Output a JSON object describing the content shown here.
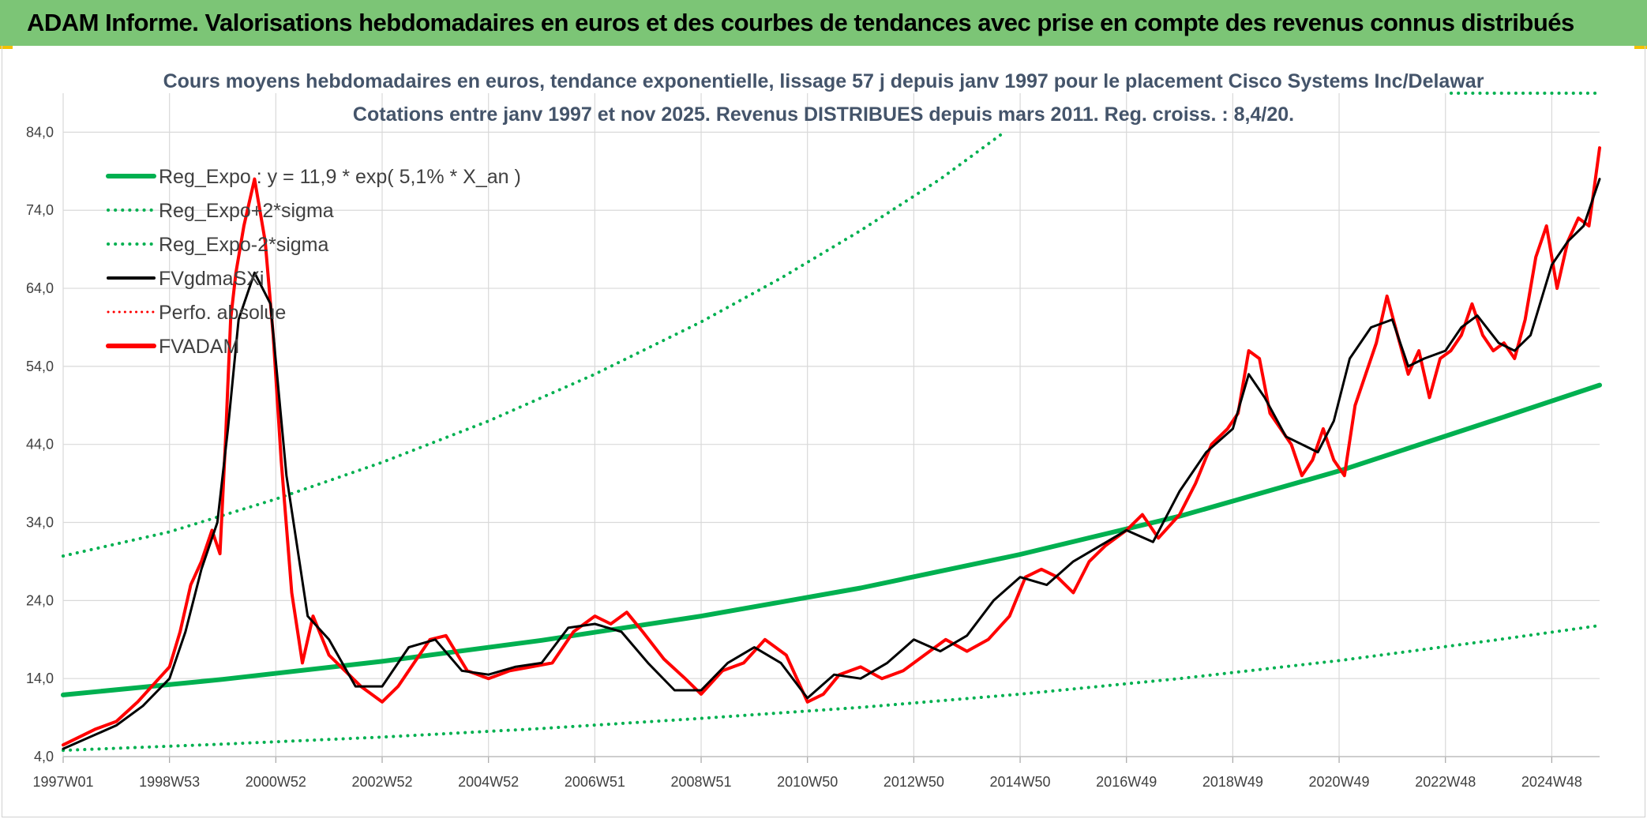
{
  "header": {
    "banner_title": "ADAM Informe. Valorisations hebdomadaires en euros et des courbes de tendances avec prise en compte des revenus connus distribués"
  },
  "colors": {
    "banner_bg": "#7cc576",
    "reg_green": "#00b050",
    "fv_black": "#000000",
    "adam_red": "#ff0000",
    "title_color": "#44546a",
    "grid": "#d9d9d9"
  },
  "chart_data": {
    "type": "line",
    "title": "Cours moyens hebdomadaires en euros, tendance exponentielle, lissage 57 j depuis janv 1997 pour le placement Cisco Systems Inc/Delawar",
    "subtitle": "Cotations entre janv 1997 et nov 2025. Revenus DISTRIBUES depuis mars 2011. Reg. croiss. : 8,4/20.",
    "xlabel": "",
    "ylabel": "",
    "x_range": [
      1997.0,
      2025.9
    ],
    "ylim": [
      4,
      89
    ],
    "y_ticks": [
      "4,0",
      "14,0",
      "24,0",
      "34,0",
      "44,0",
      "54,0",
      "64,0",
      "74,0",
      "84,0"
    ],
    "y_tick_values": [
      4,
      14,
      24,
      34,
      44,
      54,
      64,
      74,
      84
    ],
    "x_tick_labels": [
      "1997W01",
      "1998W53",
      "2000W52",
      "2002W52",
      "2004W52",
      "2006W51",
      "2008W51",
      "2010W50",
      "2012W50",
      "2014W50",
      "2016W49",
      "2018W49",
      "2020W49",
      "2022W48",
      "2024W48"
    ],
    "x_tick_values": [
      1997.0,
      1999.0,
      2001.0,
      2003.0,
      2005.0,
      2007.0,
      2009.0,
      2011.0,
      2013.0,
      2015.0,
      2017.0,
      2019.0,
      2021.0,
      2023.0,
      2025.0
    ],
    "grid": true,
    "legend_position": "top-left",
    "legend": [
      {
        "label": "Reg_Expo : y = 11,9 * exp( 5,1% *  X_an )",
        "style": "solid",
        "color": "#00b050"
      },
      {
        "label": "Reg_Expo+2*sigma",
        "style": "dotted",
        "color": "#00b050"
      },
      {
        "label": "Reg_Expo-2*sigma",
        "style": "dotted",
        "color": "#00b050"
      },
      {
        "label": "FVgdmaSXi",
        "style": "solid",
        "color": "#000000"
      },
      {
        "label": "Perfo. absolue",
        "style": "dotted",
        "color": "#ff0000"
      },
      {
        "label": "FVADAM",
        "style": "solid",
        "color": "#ff0000"
      }
    ],
    "series": [
      {
        "name": "Reg_Expo : y = 11,9 * exp( 5,1% *  X_an )",
        "x": [
          1997.0,
          2000.0,
          2003.0,
          2006.0,
          2009.0,
          2012.0,
          2015.0,
          2018.0,
          2021.0,
          2024.0,
          2025.9
        ],
        "values": [
          11.9,
          13.9,
          16.2,
          18.9,
          22.0,
          25.6,
          29.9,
          34.8,
          40.6,
          47.3,
          51.6
        ]
      },
      {
        "name": "Reg_Expo+2*sigma",
        "x": [
          1997.0,
          1999.0,
          2001.0,
          2003.0,
          2005.0,
          2007.0,
          2009.0,
          2010.5,
          2012.0,
          2013.5,
          2014.7
        ],
        "values": [
          29.7,
          32.8,
          37.0,
          41.7,
          47.0,
          53.0,
          59.7,
          65.3,
          71.4,
          78.0,
          84.0
        ]
      },
      {
        "name": "Reg_Expo-2*sigma",
        "x": [
          1997.0,
          2000.0,
          2003.0,
          2006.0,
          2009.0,
          2012.0,
          2015.0,
          2018.0,
          2021.0,
          2024.0,
          2025.9
        ],
        "values": [
          4.8,
          5.6,
          6.5,
          7.6,
          8.9,
          10.3,
          12.0,
          14.0,
          16.3,
          19.0,
          20.8
        ]
      },
      {
        "name": "FVgdmaSXi",
        "x": [
          1997.0,
          1997.5,
          1998.0,
          1998.5,
          1999.0,
          1999.3,
          1999.6,
          1999.9,
          2000.1,
          2000.3,
          2000.6,
          2000.9,
          2001.2,
          2001.6,
          2002.0,
          2002.5,
          2003.0,
          2003.5,
          2004.0,
          2004.5,
          2005.0,
          2005.5,
          2006.0,
          2006.5,
          2007.0,
          2007.5,
          2008.0,
          2008.5,
          2009.0,
          2009.5,
          2010.0,
          2010.5,
          2011.0,
          2011.5,
          2012.0,
          2012.5,
          2013.0,
          2013.5,
          2014.0,
          2014.5,
          2015.0,
          2015.5,
          2016.0,
          2016.5,
          2017.0,
          2017.5,
          2018.0,
          2018.5,
          2019.0,
          2019.3,
          2019.6,
          2020.0,
          2020.3,
          2020.6,
          2020.9,
          2021.2,
          2021.6,
          2022.0,
          2022.3,
          2022.6,
          2023.0,
          2023.3,
          2023.6,
          2024.0,
          2024.3,
          2024.6,
          2025.0,
          2025.3,
          2025.6,
          2025.9
        ],
        "values": [
          5.0,
          6.5,
          8.0,
          10.5,
          14.0,
          20.0,
          28.0,
          34.0,
          46.0,
          60.0,
          66.0,
          62.0,
          40.0,
          22.0,
          19.0,
          13.0,
          13.0,
          18.0,
          19.0,
          15.0,
          14.5,
          15.5,
          16.0,
          20.5,
          21.0,
          20.0,
          16.0,
          12.5,
          12.5,
          16.0,
          18.0,
          16.0,
          11.5,
          14.5,
          14.0,
          16.0,
          19.0,
          17.5,
          19.5,
          24.0,
          27.0,
          26.0,
          29.0,
          31.0,
          33.0,
          31.5,
          38.0,
          43.0,
          46.0,
          53.0,
          50.0,
          45.0,
          44.0,
          43.0,
          47.0,
          55.0,
          59.0,
          60.0,
          54.0,
          55.0,
          56.0,
          59.0,
          60.5,
          57.0,
          56.0,
          58.0,
          67.0,
          70.0,
          72.0,
          78.0
        ]
      },
      {
        "name": "FVADAM",
        "x": [
          1997.0,
          1997.3,
          1997.6,
          1998.0,
          1998.4,
          1998.8,
          1999.0,
          1999.2,
          1999.4,
          1999.6,
          1999.8,
          1999.95,
          2000.05,
          2000.15,
          2000.25,
          2000.4,
          2000.6,
          2000.8,
          2000.95,
          2001.1,
          2001.3,
          2001.5,
          2001.7,
          2002.0,
          2002.3,
          2002.6,
          2003.0,
          2003.3,
          2003.6,
          2003.9,
          2004.2,
          2004.6,
          2005.0,
          2005.4,
          2005.8,
          2006.2,
          2006.6,
          2007.0,
          2007.3,
          2007.6,
          2007.9,
          2008.3,
          2008.7,
          2009.0,
          2009.4,
          2009.8,
          2010.2,
          2010.6,
          2011.0,
          2011.3,
          2011.6,
          2012.0,
          2012.4,
          2012.8,
          2013.2,
          2013.6,
          2014.0,
          2014.4,
          2014.8,
          2015.1,
          2015.4,
          2015.7,
          2016.0,
          2016.3,
          2016.6,
          2017.0,
          2017.3,
          2017.6,
          2018.0,
          2018.3,
          2018.6,
          2018.9,
          2019.1,
          2019.3,
          2019.5,
          2019.7,
          2019.9,
          2020.1,
          2020.3,
          2020.5,
          2020.7,
          2020.9,
          2021.1,
          2021.3,
          2021.5,
          2021.7,
          2021.9,
          2022.1,
          2022.3,
          2022.5,
          2022.7,
          2022.9,
          2023.1,
          2023.3,
          2023.5,
          2023.7,
          2023.9,
          2024.1,
          2024.3,
          2024.5,
          2024.7,
          2024.9,
          2025.1,
          2025.3,
          2025.5,
          2025.7,
          2025.8,
          2025.9
        ],
        "values": [
          5.5,
          6.5,
          7.5,
          8.5,
          11.0,
          14.0,
          15.5,
          20.0,
          26.0,
          29.0,
          33.0,
          30.0,
          44.0,
          60.0,
          66.0,
          72.0,
          78.0,
          70.0,
          58.0,
          42.0,
          25.0,
          16.0,
          22.0,
          17.0,
          15.0,
          13.0,
          11.0,
          13.0,
          16.0,
          19.0,
          19.5,
          15.0,
          14.0,
          15.0,
          15.5,
          16.0,
          20.0,
          22.0,
          21.0,
          22.5,
          20.0,
          16.5,
          14.0,
          12.0,
          15.0,
          16.0,
          19.0,
          17.0,
          11.0,
          12.0,
          14.5,
          15.5,
          14.0,
          15.0,
          17.0,
          19.0,
          17.5,
          19.0,
          22.0,
          27.0,
          28.0,
          27.0,
          25.0,
          29.0,
          31.0,
          33.0,
          35.0,
          32.0,
          35.0,
          39.0,
          44.0,
          46.0,
          48.0,
          56.0,
          55.0,
          48.0,
          46.0,
          44.0,
          40.0,
          42.0,
          46.0,
          42.0,
          40.0,
          49.0,
          53.0,
          57.0,
          63.0,
          58.0,
          53.0,
          56.0,
          50.0,
          55.0,
          56.0,
          58.0,
          62.0,
          58.0,
          56.0,
          57.0,
          55.0,
          60.0,
          68.0,
          72.0,
          64.0,
          70.0,
          73.0,
          72.0,
          77.0,
          82.0
        ]
      }
    ]
  }
}
